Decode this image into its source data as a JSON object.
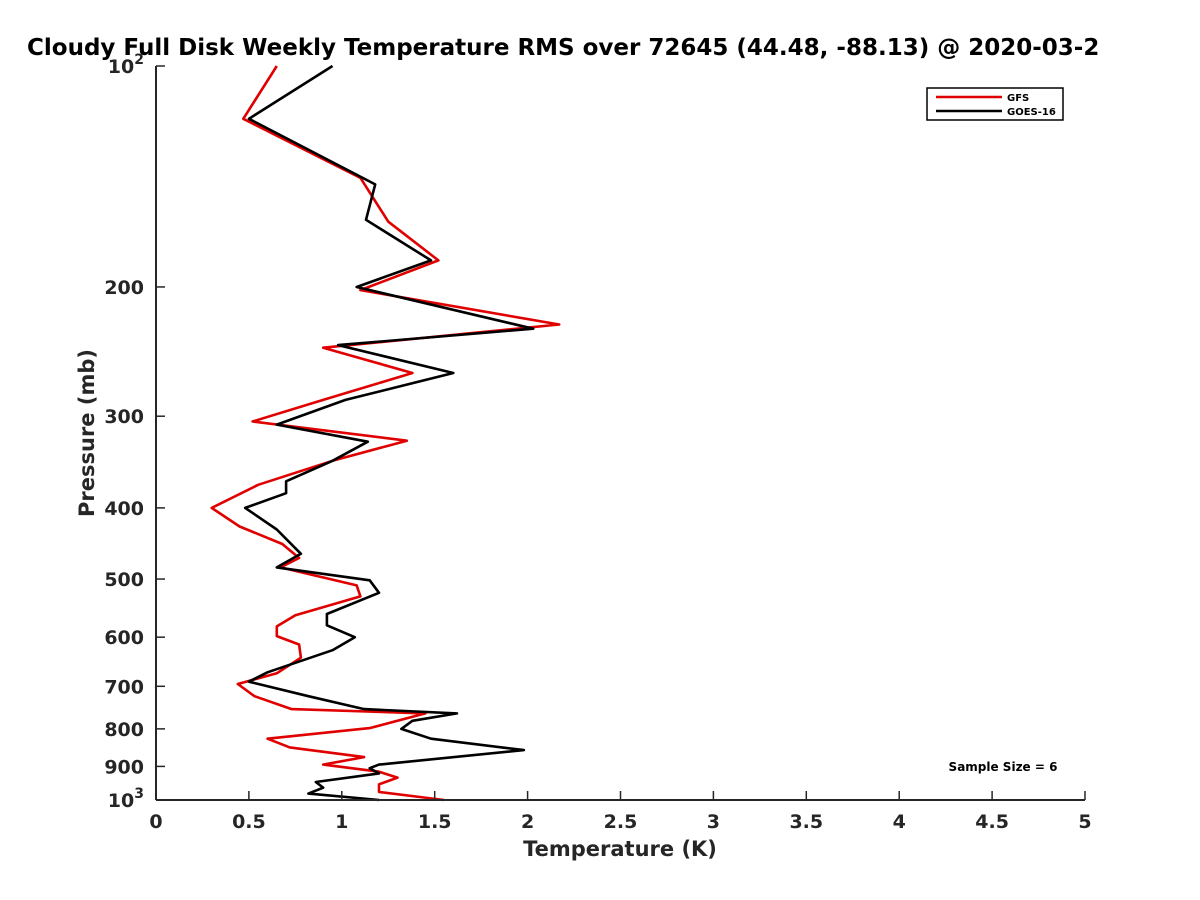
{
  "chart_data": {
    "type": "line",
    "title": "Cloudy Full Disk Weekly Temperature RMS over 72645 (44.48, -88.13) @ 2020-03-2",
    "xlabel": "Temperature (K)",
    "ylabel": "Pressure (mb)",
    "xlim": [
      0,
      5
    ],
    "ylim": [
      1000,
      100
    ],
    "yscale": "log",
    "x_ticks": [
      "0",
      "0.5",
      "1",
      "1.5",
      "2",
      "2.5",
      "3",
      "3.5",
      "4",
      "4.5",
      "5"
    ],
    "y_ticks": [
      {
        "value": 100,
        "base": "10",
        "exp": "2"
      },
      {
        "value": 200,
        "label": "200"
      },
      {
        "value": 300,
        "label": "300"
      },
      {
        "value": 400,
        "label": "400"
      },
      {
        "value": 500,
        "label": "500"
      },
      {
        "value": 600,
        "label": "600"
      },
      {
        "value": 700,
        "label": "700"
      },
      {
        "value": 800,
        "label": "800"
      },
      {
        "value": 900,
        "label": "900"
      },
      {
        "value": 1000,
        "base": "10",
        "exp": "3"
      }
    ],
    "legend_position": "top-right",
    "grid": false,
    "annotation": "Sample Size = 6",
    "series": [
      {
        "name": "GFS",
        "color": "#e00000",
        "points": [
          [
            0.65,
            100
          ],
          [
            0.47,
            118
          ],
          [
            1.1,
            142
          ],
          [
            1.25,
            163
          ],
          [
            1.52,
            184
          ],
          [
            1.1,
            202
          ],
          [
            2.17,
            225
          ],
          [
            0.9,
            242
          ],
          [
            1.38,
            262
          ],
          [
            0.9,
            285
          ],
          [
            0.52,
            305
          ],
          [
            1.35,
            324
          ],
          [
            0.95,
            345
          ],
          [
            0.55,
            372
          ],
          [
            0.3,
            400
          ],
          [
            0.45,
            424
          ],
          [
            0.68,
            448
          ],
          [
            0.77,
            468
          ],
          [
            0.67,
            482
          ],
          [
            1.08,
            510
          ],
          [
            1.1,
            528
          ],
          [
            0.75,
            560
          ],
          [
            0.65,
            580
          ],
          [
            0.65,
            598
          ],
          [
            0.77,
            614
          ],
          [
            0.78,
            640
          ],
          [
            0.65,
            672
          ],
          [
            0.44,
            695
          ],
          [
            0.53,
            722
          ],
          [
            0.73,
            752
          ],
          [
            1.45,
            762
          ],
          [
            1.15,
            798
          ],
          [
            0.6,
            825
          ],
          [
            0.72,
            848
          ],
          [
            1.12,
            874
          ],
          [
            0.9,
            895
          ],
          [
            1.2,
            915
          ],
          [
            1.3,
            932
          ],
          [
            1.2,
            952
          ],
          [
            1.2,
            975
          ],
          [
            1.55,
            1000
          ]
        ]
      },
      {
        "name": "GOES-16",
        "color": "#000000",
        "points": [
          [
            0.95,
            100
          ],
          [
            0.5,
            118
          ],
          [
            1.18,
            145
          ],
          [
            1.13,
            162
          ],
          [
            1.48,
            184
          ],
          [
            1.08,
            200
          ],
          [
            2.03,
            228
          ],
          [
            0.98,
            240
          ],
          [
            1.6,
            262
          ],
          [
            1.02,
            285
          ],
          [
            0.65,
            308
          ],
          [
            1.14,
            325
          ],
          [
            0.95,
            345
          ],
          [
            0.7,
            368
          ],
          [
            0.7,
            382
          ],
          [
            0.48,
            400
          ],
          [
            0.65,
            428
          ],
          [
            0.78,
            462
          ],
          [
            0.65,
            482
          ],
          [
            1.15,
            502
          ],
          [
            1.2,
            522
          ],
          [
            0.92,
            558
          ],
          [
            0.92,
            578
          ],
          [
            1.07,
            600
          ],
          [
            0.95,
            625
          ],
          [
            0.6,
            670
          ],
          [
            0.5,
            690
          ],
          [
            0.82,
            722
          ],
          [
            1.12,
            752
          ],
          [
            1.62,
            762
          ],
          [
            1.38,
            780
          ],
          [
            1.32,
            800
          ],
          [
            1.48,
            825
          ],
          [
            1.98,
            855
          ],
          [
            1.2,
            895
          ],
          [
            1.15,
            905
          ],
          [
            1.2,
            920
          ],
          [
            0.86,
            945
          ],
          [
            0.9,
            962
          ],
          [
            0.82,
            980
          ],
          [
            1.2,
            1000
          ]
        ]
      }
    ]
  }
}
